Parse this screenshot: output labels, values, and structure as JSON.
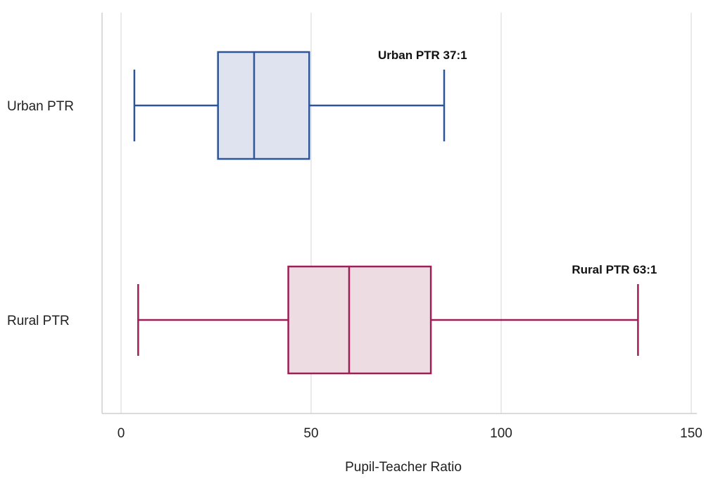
{
  "chart_data": {
    "type": "boxplot",
    "orientation": "horizontal",
    "xlabel": "Pupil-Teacher Ratio",
    "xlim": [
      -5,
      152
    ],
    "xticks": [
      0,
      50,
      100,
      150
    ],
    "xtick_labels": [
      "0",
      "50",
      "100",
      "150"
    ],
    "grid": "vertical",
    "series": [
      {
        "name": "Urban PTR",
        "min": 3.5,
        "q1": 25.5,
        "median": 35,
        "q3": 49.5,
        "max": 85,
        "color": "#2d5597",
        "fill": "#dfe3ef",
        "annotation": "Urban PTR 37:1"
      },
      {
        "name": "Rural PTR",
        "min": 4.5,
        "q1": 44,
        "median": 60,
        "q3": 81.5,
        "max": 136,
        "color": "#9e1f57",
        "fill": "#eddde2",
        "annotation": "Rural PTR 63:1"
      }
    ]
  }
}
